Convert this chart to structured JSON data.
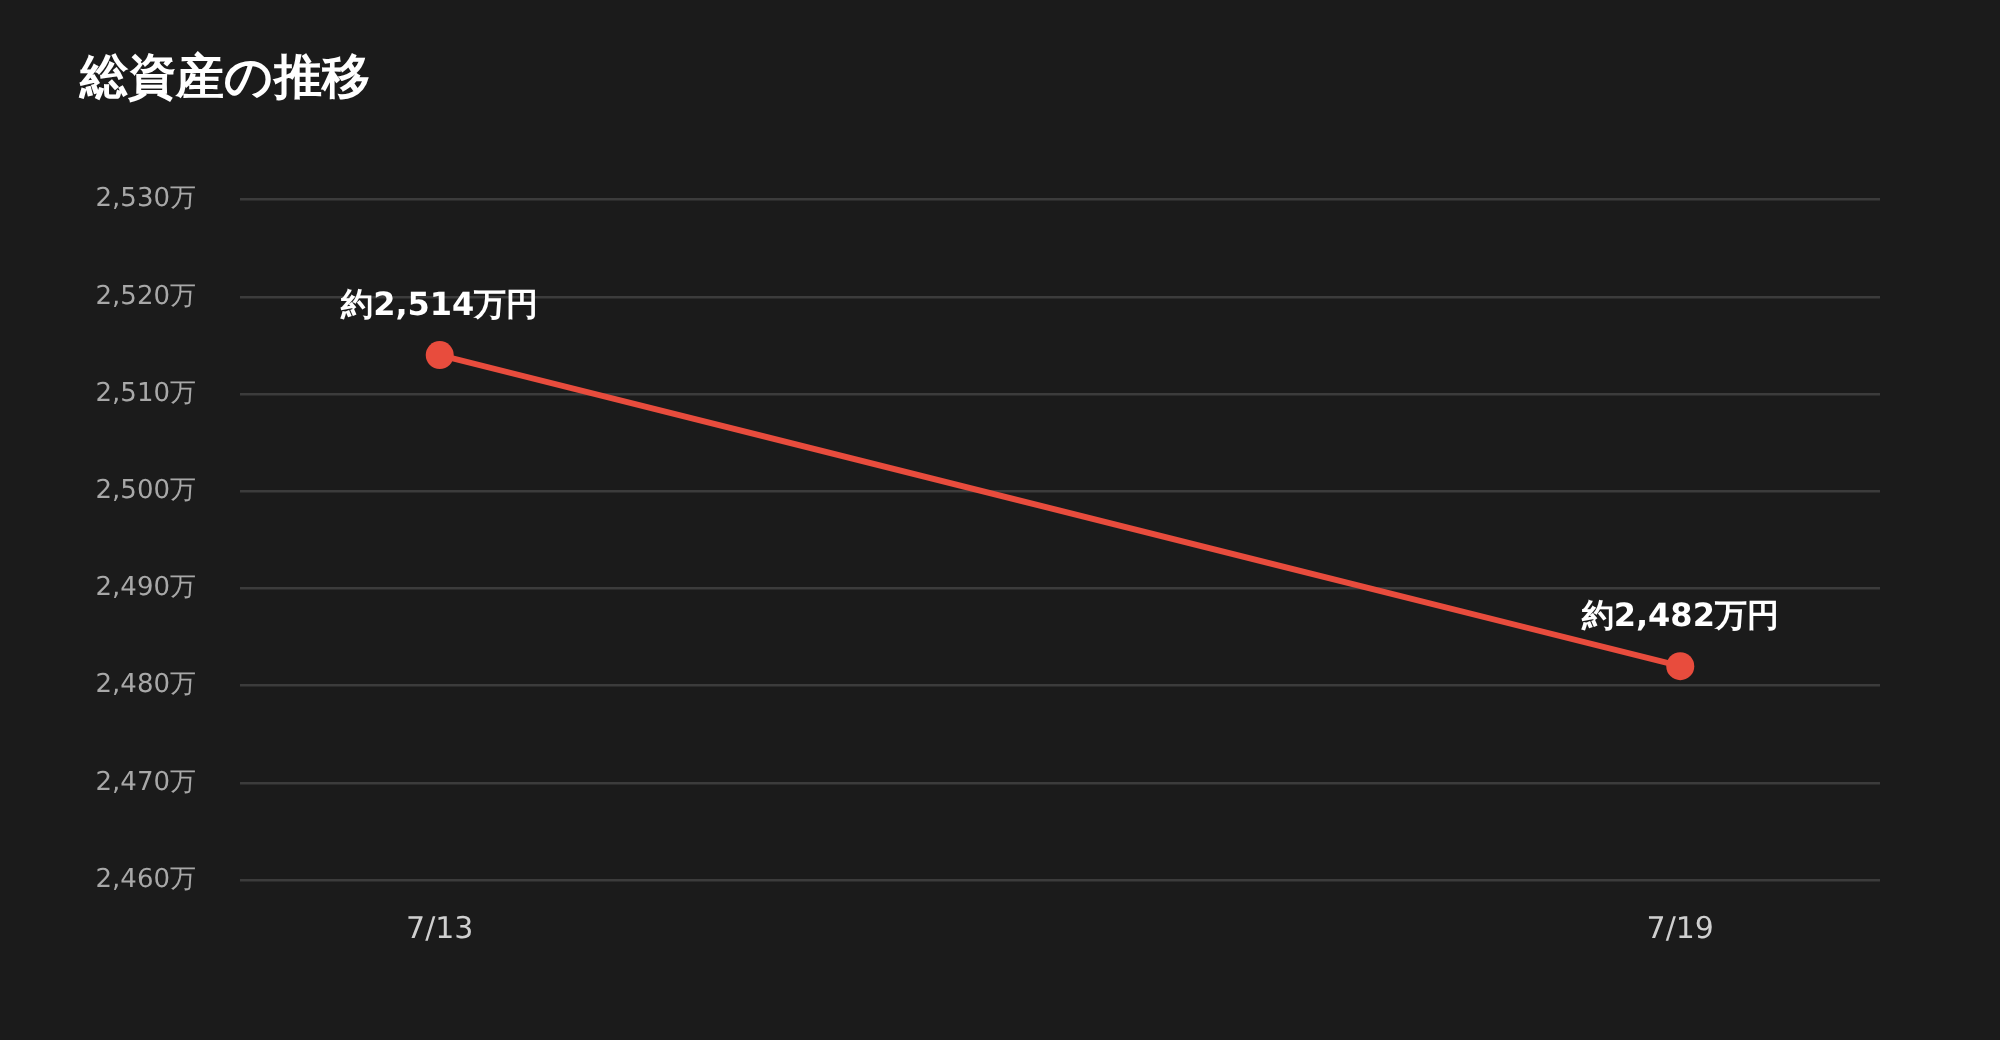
{
  "chart_data": {
    "type": "line",
    "title": "総資産の推移",
    "categories": [
      "7/13",
      "7/19"
    ],
    "values": [
      2514,
      2482
    ],
    "value_labels": [
      "約2,514万円",
      "約2,482万円"
    ],
    "color": "#e84c3d",
    "ylim": [
      2460,
      2530
    ],
    "yticks": [
      {
        "value": 2460,
        "label": "2,460万"
      },
      {
        "value": 2470,
        "label": "2,470万"
      },
      {
        "value": 2480,
        "label": "2,480万"
      },
      {
        "value": 2490,
        "label": "2,490万"
      },
      {
        "value": 2500,
        "label": "2,500万"
      },
      {
        "value": 2510,
        "label": "2,510万"
      },
      {
        "value": 2520,
        "label": "2,520万"
      },
      {
        "value": 2530,
        "label": "2,530万"
      }
    ],
    "grid": "y",
    "legend": false,
    "marker": "circle"
  }
}
